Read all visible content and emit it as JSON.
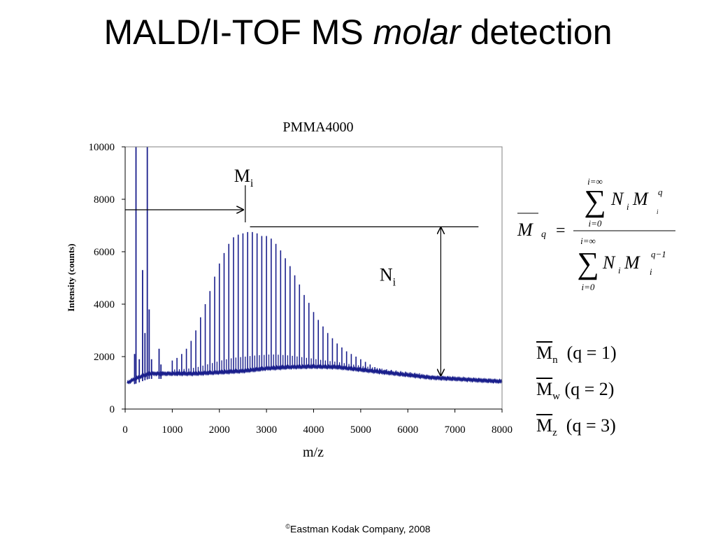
{
  "slide": {
    "title_pre": "MALD/I-TOF MS ",
    "title_em": "molar",
    "title_post": " detection",
    "footer_symbol": "©",
    "footer_text": "Eastman Kodak Company, 2008"
  },
  "chart_data": {
    "type": "line",
    "title": "PMMA4000",
    "xlabel": "m/z",
    "ylabel": "Intensity (counts)",
    "xlim": [
      0,
      8000
    ],
    "ylim": [
      0,
      10000
    ],
    "xticks": [
      0,
      1000,
      2000,
      3000,
      4000,
      5000,
      6000,
      7000,
      8000
    ],
    "yticks": [
      0,
      2000,
      4000,
      6000,
      8000,
      10000
    ],
    "grid": false,
    "line_color": "#1a1f8c",
    "baseline": [
      [
        50,
        1000
      ],
      [
        200,
        1150
      ],
      [
        500,
        1350
      ],
      [
        1000,
        1350
      ],
      [
        1500,
        1350
      ],
      [
        2000,
        1400
      ],
      [
        2500,
        1450
      ],
      [
        3000,
        1550
      ],
      [
        3500,
        1600
      ],
      [
        4000,
        1620
      ],
      [
        4500,
        1600
      ],
      [
        5000,
        1500
      ],
      [
        5500,
        1400
      ],
      [
        6000,
        1300
      ],
      [
        6500,
        1200
      ],
      [
        7000,
        1150
      ],
      [
        7500,
        1100
      ],
      [
        8000,
        1050
      ]
    ],
    "matrix_peaks": [
      [
        200,
        2100
      ],
      [
        230,
        10000
      ],
      [
        300,
        1900
      ],
      [
        370,
        5300
      ],
      [
        420,
        2900
      ],
      [
        470,
        10000
      ],
      [
        510,
        3800
      ],
      [
        560,
        1900
      ],
      [
        720,
        2300
      ],
      [
        760,
        1700
      ]
    ],
    "polymer_peaks": [
      [
        1000,
        1850
      ],
      [
        1100,
        1950
      ],
      [
        1200,
        2100
      ],
      [
        1300,
        2300
      ],
      [
        1400,
        2600
      ],
      [
        1500,
        3000
      ],
      [
        1600,
        3500
      ],
      [
        1700,
        4000
      ],
      [
        1800,
        4500
      ],
      [
        1900,
        5050
      ],
      [
        2000,
        5550
      ],
      [
        2100,
        5950
      ],
      [
        2200,
        6300
      ],
      [
        2300,
        6550
      ],
      [
        2400,
        6650
      ],
      [
        2500,
        6700
      ],
      [
        2600,
        6750
      ],
      [
        2700,
        6750
      ],
      [
        2800,
        6700
      ],
      [
        2900,
        6600
      ],
      [
        3000,
        6600
      ],
      [
        3100,
        6500
      ],
      [
        3200,
        6300
      ],
      [
        3300,
        6050
      ],
      [
        3400,
        5750
      ],
      [
        3500,
        5450
      ],
      [
        3600,
        5100
      ],
      [
        3700,
        4750
      ],
      [
        3800,
        4350
      ],
      [
        3900,
        4050
      ],
      [
        4000,
        3700
      ],
      [
        4100,
        3400
      ],
      [
        4200,
        3150
      ],
      [
        4300,
        2900
      ],
      [
        4400,
        2700
      ],
      [
        4500,
        2500
      ],
      [
        4600,
        2350
      ],
      [
        4700,
        2200
      ],
      [
        4800,
        2100
      ],
      [
        4900,
        2000
      ],
      [
        5000,
        1900
      ],
      [
        5100,
        1800
      ],
      [
        5200,
        1700
      ],
      [
        5300,
        1600
      ],
      [
        5400,
        1550
      ],
      [
        5500,
        1500
      ],
      [
        5600,
        1450
      ],
      [
        5700,
        1400
      ],
      [
        5800,
        1350
      ],
      [
        5900,
        1300
      ],
      [
        6000,
        1270
      ],
      [
        6100,
        1240
      ],
      [
        6200,
        1220
      ]
    ],
    "annotations": [
      {
        "type": "arrow-h",
        "label_main": "M",
        "label_sub": "i",
        "y": 7600,
        "x_from": 0,
        "x_to": 2550
      },
      {
        "type": "arrow-v",
        "label_main": "N",
        "label_sub": "i",
        "x": 6700,
        "y_from": 1250,
        "y_to": 6950
      }
    ]
  },
  "equation": {
    "lhs_var": "M",
    "lhs_sub": "q",
    "equals": "=",
    "sum_upper": "i=∞",
    "sum_lower": "i=0",
    "sum_symbol": "∑",
    "num_N": "N",
    "num_N_sub": "i",
    "num_M": "M",
    "num_M_sup": "q",
    "num_M_sub": "i",
    "den_N": "N",
    "den_N_sub": "i",
    "den_M": "M",
    "den_M_sup": "q−1",
    "den_M_sub": "i"
  },
  "moments": [
    {
      "var": "M",
      "sub": "n",
      "cond": "(q = 1)"
    },
    {
      "var": "M",
      "sub": "w",
      "cond": "(q = 2)"
    },
    {
      "var": "M",
      "sub": "z",
      "cond": "(q = 3)"
    }
  ]
}
